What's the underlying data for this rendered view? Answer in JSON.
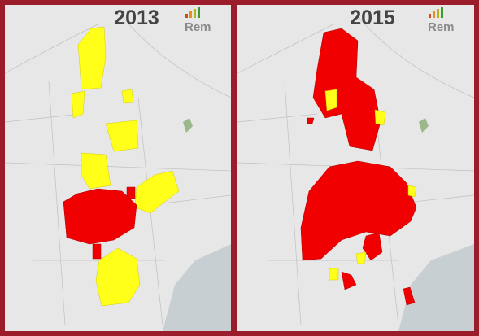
{
  "panels": [
    {
      "year": "2013",
      "logo": "Rem"
    },
    {
      "year": "2015",
      "logo": "Rem"
    }
  ]
}
